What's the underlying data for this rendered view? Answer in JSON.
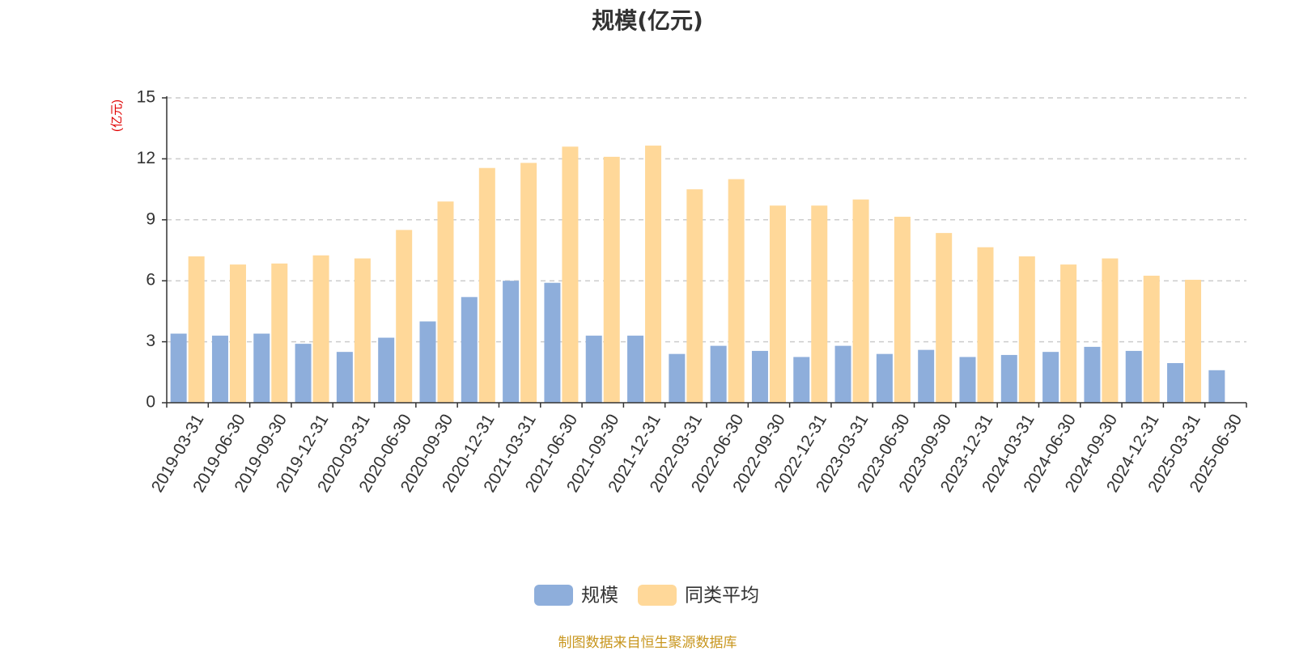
{
  "chart_data": {
    "type": "bar",
    "title": "规模(亿元)",
    "ylabel": "(亿元)",
    "xlabel": "",
    "ylim": [
      0,
      15
    ],
    "yticks": [
      0,
      3,
      6,
      9,
      12,
      15
    ],
    "grid": true,
    "legend_position": "bottom-center",
    "categories": [
      "2019-03-31",
      "2019-06-30",
      "2019-09-30",
      "2019-12-31",
      "2020-03-31",
      "2020-06-30",
      "2020-09-30",
      "2020-12-31",
      "2021-03-31",
      "2021-06-30",
      "2021-09-30",
      "2021-12-31",
      "2022-03-31",
      "2022-06-30",
      "2022-09-30",
      "2022-12-31",
      "2023-03-31",
      "2023-06-30",
      "2023-09-30",
      "2023-12-31",
      "2024-03-31",
      "2024-06-30",
      "2024-09-30",
      "2024-12-31",
      "2025-03-31",
      "2025-06-30"
    ],
    "series": [
      {
        "name": "规模",
        "color": "#8eaedb",
        "values": [
          3.4,
          3.3,
          3.4,
          2.9,
          2.5,
          3.2,
          4.0,
          5.2,
          6.0,
          5.9,
          3.3,
          3.3,
          2.4,
          2.8,
          2.55,
          2.25,
          2.8,
          2.4,
          2.6,
          2.25,
          2.35,
          2.5,
          2.75,
          2.55,
          1.95,
          1.6
        ]
      },
      {
        "name": "同类平均",
        "color": "#ffd899",
        "values": [
          7.2,
          6.8,
          6.85,
          7.25,
          7.1,
          8.5,
          9.9,
          11.55,
          11.8,
          12.6,
          12.1,
          12.65,
          10.5,
          11.0,
          9.7,
          9.7,
          10.0,
          9.15,
          8.35,
          7.65,
          7.2,
          6.8,
          7.1,
          6.25,
          6.05,
          null
        ]
      }
    ]
  },
  "footer": {
    "source": "制图数据来自恒生聚源数据库"
  }
}
